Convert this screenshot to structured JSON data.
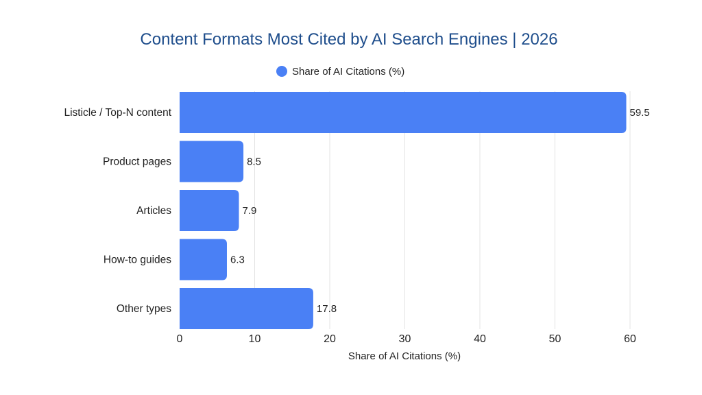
{
  "chart_data": {
    "type": "bar",
    "orientation": "horizontal",
    "title": "Content Formats Most Cited by AI Search Engines | 2026",
    "legend": {
      "position": "top-center"
    },
    "categories": [
      "Listicle / Top-N content",
      "Product pages",
      "Articles",
      "How-to guides",
      "Other types"
    ],
    "series": [
      {
        "name": "Share of AI Citations (%)",
        "values": [
          59.5,
          8.5,
          7.9,
          6.3,
          17.8
        ],
        "color": "#4a80f5"
      }
    ],
    "value_labels": [
      "59.5",
      "8.5",
      "7.9",
      "6.3",
      "17.8"
    ],
    "xlabel": "Share of AI Citations (%)",
    "ylabel": "",
    "xlim": [
      0,
      60
    ],
    "xticks": [
      0,
      10,
      20,
      30,
      40,
      50,
      60
    ],
    "xtick_labels": [
      "0",
      "10",
      "20",
      "30",
      "40",
      "50",
      "60"
    ],
    "grid": true
  }
}
